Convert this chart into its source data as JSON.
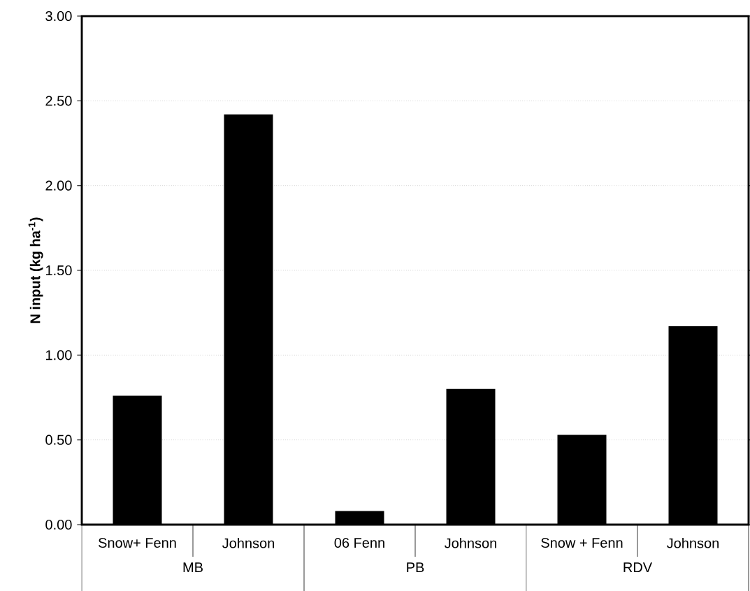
{
  "chart_data": {
    "type": "bar",
    "ylabel": "N input (kg ha$^{-1}$)",
    "categories": [
      "Snow+ Fenn",
      "Johnson",
      "06 Fenn",
      "Johnson",
      "Snow + Fenn",
      "Johnson"
    ],
    "values": [
      0.76,
      2.42,
      0.08,
      0.8,
      0.53,
      1.17
    ],
    "color": "#000000",
    "ylim": [
      0,
      3
    ],
    "yticks": [
      {
        "value": 0,
        "label": "0.00"
      },
      {
        "value": 0.5,
        "label": "0.50"
      },
      {
        "value": 1,
        "label": "1.00"
      },
      {
        "value": 1.5,
        "label": "1.50"
      },
      {
        "value": 2,
        "label": "2.00"
      },
      {
        "value": 2.5,
        "label": "2.50"
      },
      {
        "value": 3,
        "label": "3.00"
      }
    ],
    "grid": "y",
    "annotations": [
      "MB",
      "PB",
      "RDV"
    ]
  }
}
